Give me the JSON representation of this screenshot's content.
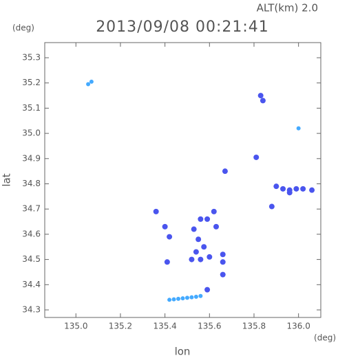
{
  "chart_data": {
    "type": "scatter",
    "title": "2013/09/08 00:21:41",
    "subtitle": "ALT(km) 2.0",
    "ylabel": "lat",
    "xlabel": "lon",
    "y_unit": "(deg)",
    "x_unit": "(deg)",
    "xlim": [
      134.86,
      136.1
    ],
    "ylim": [
      34.27,
      35.36
    ],
    "xticks": [
      {
        "value": 135,
        "label": "135.0"
      },
      135.2,
      135.4,
      135.6,
      135.8,
      {
        "value": 136,
        "label": "136.0"
      }
    ],
    "yticks": [
      34.3,
      34.4,
      34.5,
      34.6,
      34.7,
      34.8,
      34.9,
      {
        "value": 35,
        "label": "35.0"
      },
      35.1,
      35.2,
      35.3
    ],
    "series": [
      {
        "color": "#4a55ee",
        "marker_size": 4,
        "x": [
          135.83,
          135.84,
          135.59,
          135.9,
          135.93,
          135.96,
          135.99,
          136.02,
          136.06,
          135.96,
          135.36,
          135.4,
          135.42,
          135.41,
          135.53,
          135.56,
          135.59,
          135.62,
          135.63,
          135.55,
          135.575,
          135.54,
          135.52,
          135.56,
          135.6,
          135.66,
          135.66,
          135.66,
          135.81,
          135.67,
          135.88
        ],
        "values": [
          35.15,
          35.13,
          34.38,
          34.79,
          34.78,
          34.775,
          34.78,
          34.78,
          34.775,
          34.765,
          34.69,
          34.63,
          34.59,
          34.49,
          34.62,
          34.66,
          34.66,
          34.69,
          34.63,
          34.58,
          34.55,
          34.53,
          34.5,
          34.5,
          34.51,
          34.52,
          34.44,
          34.49,
          34.905,
          34.85,
          34.71
        ]
      },
      {
        "color": "#44aaff",
        "marker_size": 3,
        "x": [
          135.055,
          135.07,
          135.42,
          135.44,
          135.46,
          135.48,
          135.5,
          135.52,
          135.54,
          135.56,
          136.0
        ],
        "values": [
          35.195,
          35.205,
          34.34,
          34.342,
          34.344,
          34.346,
          34.348,
          34.35,
          34.352,
          34.355,
          35.02
        ]
      }
    ]
  }
}
